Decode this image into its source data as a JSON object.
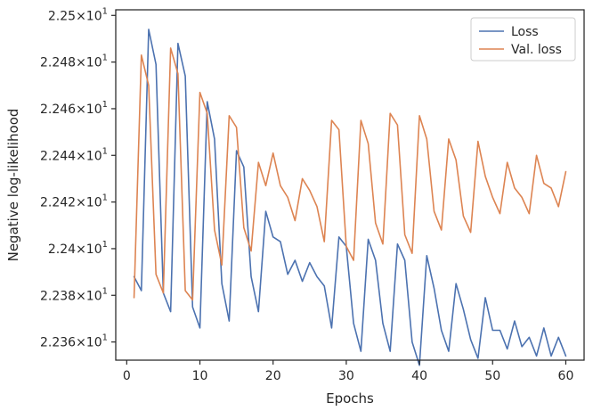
{
  "chart_data": {
    "type": "line",
    "title": "",
    "xlabel": "Epochs",
    "ylabel": "Negative log-likelihood",
    "xlim": [
      -1.5,
      62.5
    ],
    "ylim": [
      22.3522,
      22.5024
    ],
    "xticks": [
      0,
      10,
      20,
      30,
      40,
      50,
      60
    ],
    "yticks": [
      {
        "value": 22.36,
        "mantissa": "2.236",
        "times": "×",
        "base": "10",
        "exp": "1"
      },
      {
        "value": 22.38,
        "mantissa": "2.238",
        "times": "×",
        "base": "10",
        "exp": "1"
      },
      {
        "value": 22.4,
        "mantissa": "2.24",
        "times": "×",
        "base": "10",
        "exp": "1"
      },
      {
        "value": 22.42,
        "mantissa": "2.242",
        "times": "×",
        "base": "10",
        "exp": "1"
      },
      {
        "value": 22.44,
        "mantissa": "2.244",
        "times": "×",
        "base": "10",
        "exp": "1"
      },
      {
        "value": 22.46,
        "mantissa": "2.246",
        "times": "×",
        "base": "10",
        "exp": "1"
      },
      {
        "value": 22.48,
        "mantissa": "2.248",
        "times": "×",
        "base": "10",
        "exp": "1"
      },
      {
        "value": 22.5,
        "mantissa": "2.25",
        "times": "×",
        "base": "10",
        "exp": "1"
      }
    ],
    "grid": false,
    "legend_position": "top-right",
    "x": [
      1,
      2,
      3,
      4,
      5,
      6,
      7,
      8,
      9,
      10,
      11,
      12,
      13,
      14,
      15,
      16,
      17,
      18,
      19,
      20,
      21,
      22,
      23,
      24,
      25,
      26,
      27,
      28,
      29,
      30,
      31,
      32,
      33,
      34,
      35,
      36,
      37,
      38,
      39,
      40,
      41,
      42,
      43,
      44,
      45,
      46,
      47,
      48,
      49,
      50,
      51,
      52,
      53,
      54,
      55,
      56,
      57,
      58,
      59,
      60
    ],
    "series": [
      {
        "name": "Loss",
        "color": "#4c72b0",
        "values": [
          22.388,
          22.382,
          22.494,
          22.479,
          22.381,
          22.373,
          22.488,
          22.474,
          22.375,
          22.366,
          22.463,
          22.447,
          22.385,
          22.369,
          22.442,
          22.435,
          22.388,
          22.373,
          22.416,
          22.405,
          22.403,
          22.389,
          22.395,
          22.386,
          22.394,
          22.388,
          22.384,
          22.366,
          22.405,
          22.401,
          22.368,
          22.356,
          22.404,
          22.395,
          22.368,
          22.356,
          22.402,
          22.395,
          22.36,
          22.35,
          22.397,
          22.383,
          22.365,
          22.356,
          22.385,
          22.374,
          22.361,
          22.353,
          22.379,
          22.365,
          22.365,
          22.357,
          22.369,
          22.358,
          22.362,
          22.354,
          22.366,
          22.354,
          22.362,
          22.354
        ]
      },
      {
        "name": "Val. loss",
        "color": "#dd8452",
        "values": [
          22.379,
          22.483,
          22.47,
          22.389,
          22.381,
          22.486,
          22.475,
          22.382,
          22.378,
          22.467,
          22.458,
          22.408,
          22.393,
          22.457,
          22.452,
          22.409,
          22.399,
          22.437,
          22.427,
          22.441,
          22.427,
          22.422,
          22.412,
          22.43,
          22.425,
          22.418,
          22.403,
          22.455,
          22.451,
          22.401,
          22.395,
          22.455,
          22.445,
          22.411,
          22.402,
          22.458,
          22.453,
          22.406,
          22.398,
          22.457,
          22.447,
          22.416,
          22.408,
          22.447,
          22.438,
          22.414,
          22.407,
          22.446,
          22.431,
          22.422,
          22.415,
          22.437,
          22.426,
          22.422,
          22.415,
          22.44,
          22.428,
          22.426,
          22.418,
          22.433
        ]
      }
    ]
  }
}
